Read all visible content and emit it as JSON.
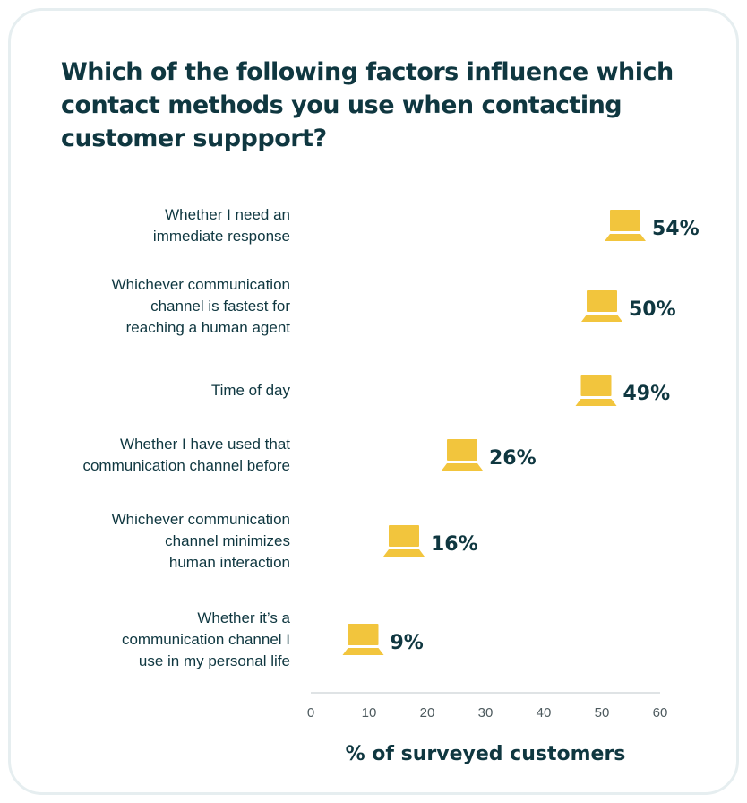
{
  "chart_data": {
    "type": "scatter",
    "title": "Which of the following factors influence which contact methods you use when contacting customer suppport?",
    "xlabel": "% of surveyed customers",
    "ylabel": "",
    "xlim": [
      0,
      60
    ],
    "xticks": [
      "0",
      "10",
      "20",
      "30",
      "40",
      "50",
      "60"
    ],
    "marker": "laptop-icon",
    "marker_color": "#f2c53d",
    "categories": [
      "Whether I need an\nimmediate response",
      "Whichever communication\nchannel is fastest for\nreaching a human agent",
      "Time of day",
      "Whether I have used that\ncommunication channel before",
      "Whichever communication\nchannel minimizes\nhuman interaction",
      "Whether it’s a\ncommunication channel I\nuse in my personal life"
    ],
    "values": [
      54,
      50,
      49,
      26,
      16,
      9
    ],
    "value_labels": [
      "54%",
      "50%",
      "49%",
      "26%",
      "16%",
      "9%"
    ]
  }
}
